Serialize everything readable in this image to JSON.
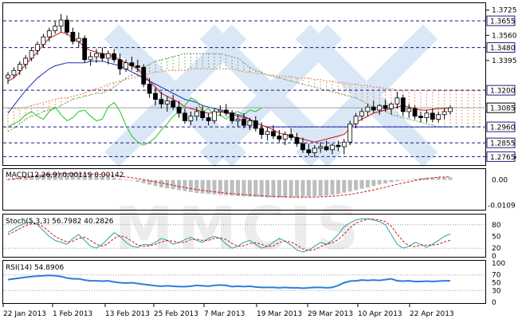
{
  "watermark": {
    "text": "MMCIS"
  },
  "chart_data": [
    {
      "type": "candlestick",
      "panel": "price",
      "y_ticks": [
        1.3725,
        1.356,
        1.3395,
        1.2765
      ],
      "ylim": [
        1.272,
        1.376
      ],
      "level_lines": [
        1.3655,
        1.348,
        1.32,
        1.296,
        1.2855,
        1.2765
      ],
      "level_labels": [
        "1.3655",
        "1.3480",
        "1.3200",
        "1.2960",
        "1.2855",
        "1.2765"
      ],
      "price_label": "1.3085",
      "price_value": 1.3085,
      "x_labels": [
        "22 Jan 2013",
        "1 Feb 2013",
        "13 Feb 2013",
        "25 Feb 2013",
        "7 Mar 2013",
        "19 Mar 2013",
        "29 Mar 2013",
        "10 Apr 2013",
        "22 Apr 2013"
      ],
      "candles": [
        [
          1.328,
          1.332,
          1.324,
          1.33
        ],
        [
          1.33,
          1.335,
          1.328,
          1.333
        ],
        [
          1.333,
          1.339,
          1.33,
          1.337
        ],
        [
          1.337,
          1.343,
          1.334,
          1.341
        ],
        [
          1.341,
          1.348,
          1.339,
          1.346
        ],
        [
          1.346,
          1.352,
          1.343,
          1.35
        ],
        [
          1.35,
          1.357,
          1.348,
          1.355
        ],
        [
          1.355,
          1.361,
          1.352,
          1.359
        ],
        [
          1.359,
          1.365,
          1.357,
          1.362
        ],
        [
          1.362,
          1.37,
          1.358,
          1.366
        ],
        [
          1.366,
          1.369,
          1.356,
          1.358
        ],
        [
          1.358,
          1.361,
          1.35,
          1.352
        ],
        [
          1.352,
          1.358,
          1.348,
          1.354
        ],
        [
          1.354,
          1.356,
          1.338,
          1.34
        ],
        [
          1.34,
          1.345,
          1.336,
          1.342
        ],
        [
          1.342,
          1.347,
          1.338,
          1.344
        ],
        [
          1.344,
          1.348,
          1.339,
          1.341
        ],
        [
          1.341,
          1.346,
          1.337,
          1.344
        ],
        [
          1.344,
          1.347,
          1.338,
          1.34
        ],
        [
          1.34,
          1.344,
          1.33,
          1.334
        ],
        [
          1.334,
          1.34,
          1.332,
          1.338
        ],
        [
          1.338,
          1.342,
          1.333,
          1.336
        ],
        [
          1.336,
          1.34,
          1.332,
          1.335
        ],
        [
          1.335,
          1.337,
          1.322,
          1.324
        ],
        [
          1.324,
          1.328,
          1.315,
          1.318
        ],
        [
          1.318,
          1.322,
          1.31,
          1.314
        ],
        [
          1.314,
          1.319,
          1.308,
          1.311
        ],
        [
          1.311,
          1.316,
          1.306,
          1.313
        ],
        [
          1.313,
          1.317,
          1.307,
          1.309
        ],
        [
          1.309,
          1.313,
          1.302,
          1.305
        ],
        [
          1.305,
          1.308,
          1.298,
          1.3
        ],
        [
          1.3,
          1.306,
          1.297,
          1.303
        ],
        [
          1.303,
          1.309,
          1.3,
          1.306
        ],
        [
          1.306,
          1.31,
          1.3,
          1.302
        ],
        [
          1.302,
          1.305,
          1.297,
          1.3
        ],
        [
          1.3,
          1.308,
          1.298,
          1.306
        ],
        [
          1.306,
          1.31,
          1.303,
          1.307
        ],
        [
          1.307,
          1.311,
          1.303,
          1.305
        ],
        [
          1.305,
          1.307,
          1.298,
          1.3
        ],
        [
          1.3,
          1.304,
          1.296,
          1.301
        ],
        [
          1.301,
          1.305,
          1.295,
          1.297
        ],
        [
          1.297,
          1.302,
          1.294,
          1.3
        ],
        [
          1.3,
          1.303,
          1.293,
          1.295
        ],
        [
          1.295,
          1.299,
          1.288,
          1.291
        ],
        [
          1.291,
          1.296,
          1.287,
          1.293
        ],
        [
          1.293,
          1.297,
          1.288,
          1.29
        ],
        [
          1.29,
          1.294,
          1.286,
          1.288
        ],
        [
          1.288,
          1.293,
          1.284,
          1.291
        ],
        [
          1.291,
          1.295,
          1.287,
          1.289
        ],
        [
          1.289,
          1.292,
          1.283,
          1.285
        ],
        [
          1.285,
          1.289,
          1.279,
          1.281
        ],
        [
          1.281,
          1.285,
          1.277,
          1.279
        ],
        [
          1.279,
          1.284,
          1.276,
          1.282
        ],
        [
          1.282,
          1.286,
          1.279,
          1.283
        ],
        [
          1.283,
          1.287,
          1.28,
          1.281
        ],
        [
          1.281,
          1.285,
          1.278,
          1.284
        ],
        [
          1.284,
          1.287,
          1.28,
          1.283
        ],
        [
          1.283,
          1.288,
          1.278,
          1.286
        ],
        [
          1.286,
          1.3,
          1.284,
          1.298
        ],
        [
          1.298,
          1.305,
          1.295,
          1.303
        ],
        [
          1.303,
          1.308,
          1.3,
          1.306
        ],
        [
          1.306,
          1.311,
          1.303,
          1.309
        ],
        [
          1.309,
          1.313,
          1.305,
          1.307
        ],
        [
          1.307,
          1.311,
          1.304,
          1.31
        ],
        [
          1.31,
          1.314,
          1.306,
          1.308
        ],
        [
          1.308,
          1.312,
          1.304,
          1.311
        ],
        [
          1.311,
          1.319,
          1.308,
          1.315
        ],
        [
          1.315,
          1.317,
          1.303,
          1.306
        ],
        [
          1.306,
          1.311,
          1.302,
          1.308
        ],
        [
          1.308,
          1.31,
          1.301,
          1.303
        ],
        [
          1.303,
          1.306,
          1.299,
          1.302
        ],
        [
          1.302,
          1.307,
          1.299,
          1.305
        ],
        [
          1.305,
          1.308,
          1.299,
          1.301
        ],
        [
          1.301,
          1.306,
          1.299,
          1.304
        ],
        [
          1.304,
          1.308,
          1.301,
          1.306
        ],
        [
          1.306,
          1.31,
          1.304,
          1.3085
        ]
      ],
      "tenkan_red": [
        1.326,
        1.328,
        1.332,
        1.337,
        1.341,
        1.345,
        1.35,
        1.354,
        1.356,
        1.358,
        1.357,
        1.354,
        1.352,
        1.348,
        1.346,
        1.345,
        1.344,
        1.343,
        1.342,
        1.34,
        1.338,
        1.336,
        1.334,
        1.33,
        1.326,
        1.322,
        1.318,
        1.316,
        1.314,
        1.312,
        1.309,
        1.308,
        1.307,
        1.306,
        1.305,
        1.305,
        1.306,
        1.305,
        1.304,
        1.303,
        1.302,
        1.301,
        1.299,
        1.297,
        1.296,
        1.294,
        1.292,
        1.291,
        1.29,
        1.289,
        1.288,
        1.287,
        1.286,
        1.287,
        1.288,
        1.289,
        1.29,
        1.291,
        1.295,
        1.299,
        1.301,
        1.303,
        1.305,
        1.306,
        1.307,
        1.308,
        1.309,
        1.31,
        1.309,
        1.308,
        1.307,
        1.307,
        1.3075,
        1.308,
        1.308,
        1.3085
      ],
      "kijun_blue": [
        1.305,
        1.31,
        1.315,
        1.32,
        1.324,
        1.328,
        1.331,
        1.334,
        1.336,
        1.337,
        1.338,
        1.338,
        1.338,
        1.338,
        1.339,
        1.339,
        1.339,
        1.338,
        1.337,
        1.336,
        1.334,
        1.332,
        1.33,
        1.328,
        1.326,
        1.324,
        1.322,
        1.32,
        1.318,
        1.316,
        1.314,
        1.313,
        1.312,
        1.31,
        1.309,
        1.308,
        1.307,
        1.306,
        1.305,
        1.304,
        1.303,
        1.301,
        1.299,
        1.297,
        1.296,
        1.296,
        1.296,
        1.296,
        1.296,
        1.296,
        1.296,
        1.296,
        1.296,
        1.296,
        1.296,
        1.296,
        1.296,
        1.296,
        1.296,
        1.296,
        1.296,
        1.296,
        1.296,
        1.296,
        1.296,
        1.296,
        1.296,
        1.296,
        1.296,
        1.296,
        1.296,
        1.296,
        1.296,
        1.296,
        1.296,
        1.296
      ],
      "chikou_green": [
        1.296,
        1.298,
        1.3,
        1.304,
        1.306,
        1.303,
        1.301,
        1.306,
        1.309,
        1.304,
        1.3,
        1.302,
        1.306,
        1.307,
        1.303,
        1.3,
        1.301,
        1.309,
        1.312,
        1.306,
        1.297,
        1.29,
        1.286,
        1.284,
        1.286,
        1.289,
        1.294,
        1.298,
        1.303,
        1.306,
        1.31,
        1.315,
        1.313,
        1.306,
        1.308,
        1.303,
        1.304,
        1.301,
        1.305,
        1.306,
        1.304,
        1.307,
        1.306,
        1.3085
      ],
      "span_a": [
        1.293,
        1.295,
        1.298,
        1.301,
        1.303,
        1.304,
        1.306,
        1.307,
        1.308,
        1.31,
        1.312,
        1.314,
        1.315,
        1.316,
        1.317,
        1.318,
        1.318,
        1.32,
        1.322,
        1.325,
        1.328,
        1.33,
        1.333,
        1.335,
        1.337,
        1.339,
        1.34,
        1.341,
        1.342,
        1.343,
        1.344,
        1.344,
        1.344,
        1.344,
        1.344,
        1.344,
        1.344,
        1.343,
        1.342,
        1.341,
        1.338,
        1.335,
        1.333,
        1.332,
        1.33,
        1.329,
        1.328,
        1.327,
        1.326,
        1.325,
        1.324,
        1.323,
        1.322,
        1.321,
        1.32,
        1.319,
        1.318,
        1.317,
        1.316,
        1.315,
        1.313,
        1.311,
        1.309,
        1.308,
        1.306,
        1.304,
        1.303,
        1.302,
        1.301,
        1.3,
        1.299,
        1.298,
        1.297,
        1.296,
        1.296,
        1.296,
        1.296,
        1.296,
        1.296,
        1.296,
        1.296,
        1.296,
        1.296,
        1.296,
        1.296,
        1.296,
        1.296,
        1.296,
        1.296,
        1.296
      ],
      "span_b": [
        1.308,
        1.308,
        1.308,
        1.309,
        1.31,
        1.311,
        1.312,
        1.313,
        1.314,
        1.315,
        1.315,
        1.316,
        1.317,
        1.318,
        1.32,
        1.321,
        1.322,
        1.324,
        1.325,
        1.326,
        1.327,
        1.328,
        1.329,
        1.33,
        1.331,
        1.332,
        1.332,
        1.333,
        1.333,
        1.333,
        1.333,
        1.334,
        1.334,
        1.334,
        1.334,
        1.334,
        1.334,
        1.334,
        1.334,
        1.333,
        1.332,
        1.332,
        1.331,
        1.331,
        1.33,
        1.33,
        1.329,
        1.329,
        1.329,
        1.328,
        1.328,
        1.328,
        1.327,
        1.327,
        1.326,
        1.326,
        1.325,
        1.325,
        1.324,
        1.324,
        1.323,
        1.323,
        1.322,
        1.322,
        1.321,
        1.321,
        1.32,
        1.32,
        1.32,
        1.32,
        1.32,
        1.32,
        1.32,
        1.32,
        1.32,
        1.32,
        1.32,
        1.32,
        1.32,
        1.32,
        1.32,
        1.32,
        1.32,
        1.32,
        1.32,
        1.32,
        1.32,
        1.32,
        1.32,
        1.32
      ]
    },
    {
      "type": "histogram",
      "panel": "macd",
      "label": "MACD(12,26,9) 0.00119 0.00142",
      "y_ticks": [
        "0.00",
        "-0.0109"
      ],
      "ylim": [
        -0.0125,
        0.004
      ],
      "histogram": [
        0.0004,
        0.0008,
        0.0012,
        0.0016,
        0.002,
        0.0024,
        0.0028,
        0.003,
        0.0031,
        0.0032,
        0.003,
        0.0028,
        0.0026,
        0.0024,
        0.002,
        0.0018,
        0.0016,
        0.0013,
        0.001,
        0.0006,
        0.0002,
        -0.0002,
        -0.0008,
        -0.0014,
        -0.002,
        -0.0026,
        -0.0032,
        -0.0036,
        -0.004,
        -0.0044,
        -0.0048,
        -0.0052,
        -0.0056,
        -0.0058,
        -0.006,
        -0.0062,
        -0.0064,
        -0.0066,
        -0.0068,
        -0.007,
        -0.0071,
        -0.0072,
        -0.0073,
        -0.0074,
        -0.0075,
        -0.0076,
        -0.0076,
        -0.0076,
        -0.0075,
        -0.0074,
        -0.0073,
        -0.0072,
        -0.0071,
        -0.007,
        -0.0068,
        -0.0064,
        -0.006,
        -0.0055,
        -0.005,
        -0.0044,
        -0.0038,
        -0.0032,
        -0.0026,
        -0.002,
        -0.0015,
        -0.001,
        -0.0006,
        -0.0002,
        0.0002,
        0.0005,
        0.0008,
        0.001,
        0.0011,
        0.0012,
        0.0012,
        0.00119
      ],
      "signal": [
        0.0002,
        0.0005,
        0.0008,
        0.0011,
        0.0014,
        0.0017,
        0.002,
        0.0023,
        0.0025,
        0.0027,
        0.0028,
        0.0028,
        0.0028,
        0.0027,
        0.0026,
        0.0025,
        0.0023,
        0.0021,
        0.0019,
        0.0016,
        0.0013,
        0.001,
        0.0006,
        0.0002,
        -0.0003,
        -0.0008,
        -0.0013,
        -0.0018,
        -0.0023,
        -0.0028,
        -0.0033,
        -0.0037,
        -0.0041,
        -0.0045,
        -0.0048,
        -0.0051,
        -0.0054,
        -0.0057,
        -0.0059,
        -0.0061,
        -0.0063,
        -0.0065,
        -0.0067,
        -0.0068,
        -0.007,
        -0.0071,
        -0.0072,
        -0.0073,
        -0.0074,
        -0.0074,
        -0.0074,
        -0.0074,
        -0.0074,
        -0.0073,
        -0.0072,
        -0.007,
        -0.0068,
        -0.0065,
        -0.0062,
        -0.0058,
        -0.0053,
        -0.0048,
        -0.0043,
        -0.0037,
        -0.0031,
        -0.0025,
        -0.0019,
        -0.0013,
        -0.0008,
        -0.0003,
        0.0002,
        0.0006,
        0.0009,
        0.0012,
        0.0013,
        0.00142
      ]
    },
    {
      "type": "line",
      "panel": "stoch",
      "label": "Stoch(5,3,3) 56.7982 40.2826",
      "y_ticks": [
        "80",
        "50",
        "20",
        "0"
      ],
      "ylim": [
        0,
        100
      ],
      "main": [
        60,
        70,
        78,
        85,
        88,
        80,
        65,
        50,
        40,
        35,
        30,
        45,
        55,
        40,
        25,
        20,
        30,
        45,
        60,
        50,
        35,
        25,
        22,
        30,
        28,
        35,
        45,
        40,
        30,
        35,
        42,
        48,
        40,
        35,
        45,
        50,
        45,
        30,
        20,
        25,
        35,
        40,
        30,
        20,
        25,
        35,
        45,
        38,
        28,
        15,
        10,
        15,
        25,
        35,
        30,
        40,
        55,
        75,
        85,
        92,
        95,
        95,
        92,
        88,
        80,
        55,
        30,
        20,
        25,
        35,
        30,
        22,
        30,
        40,
        50,
        56.8
      ],
      "signal": [
        55,
        62,
        70,
        78,
        82,
        82,
        75,
        62,
        50,
        42,
        36,
        38,
        45,
        48,
        40,
        30,
        25,
        32,
        45,
        52,
        48,
        38,
        28,
        25,
        26,
        30,
        36,
        40,
        38,
        34,
        35,
        42,
        43,
        40,
        40,
        45,
        46,
        42,
        32,
        25,
        26,
        32,
        34,
        30,
        24,
        26,
        34,
        38,
        36,
        28,
        18,
        14,
        16,
        24,
        30,
        34,
        42,
        56,
        72,
        84,
        90,
        94,
        94,
        92,
        88,
        76,
        56,
        38,
        26,
        24,
        28,
        28,
        28,
        30,
        36,
        40.3
      ]
    },
    {
      "type": "line",
      "panel": "rsi",
      "label": "RSI(14) 54.8906",
      "y_ticks": [
        "100",
        "70",
        "50",
        "30",
        "0"
      ],
      "ylim": [
        0,
        100
      ],
      "values": [
        58,
        60,
        62,
        64,
        66,
        67,
        68,
        69,
        68,
        66,
        62,
        60,
        60,
        57,
        55,
        55,
        54,
        55,
        52,
        50,
        49,
        50,
        48,
        46,
        44,
        42,
        41,
        42,
        41,
        40,
        40,
        41,
        43,
        42,
        41,
        43,
        44,
        43,
        40,
        41,
        40,
        41,
        39,
        38,
        38,
        38,
        37,
        38,
        37,
        37,
        36,
        37,
        38,
        38,
        37,
        38,
        43,
        50,
        54,
        55,
        57,
        56,
        57,
        56,
        58,
        60,
        55,
        54,
        55,
        53,
        53,
        54,
        53,
        54,
        55,
        54.9
      ]
    }
  ]
}
